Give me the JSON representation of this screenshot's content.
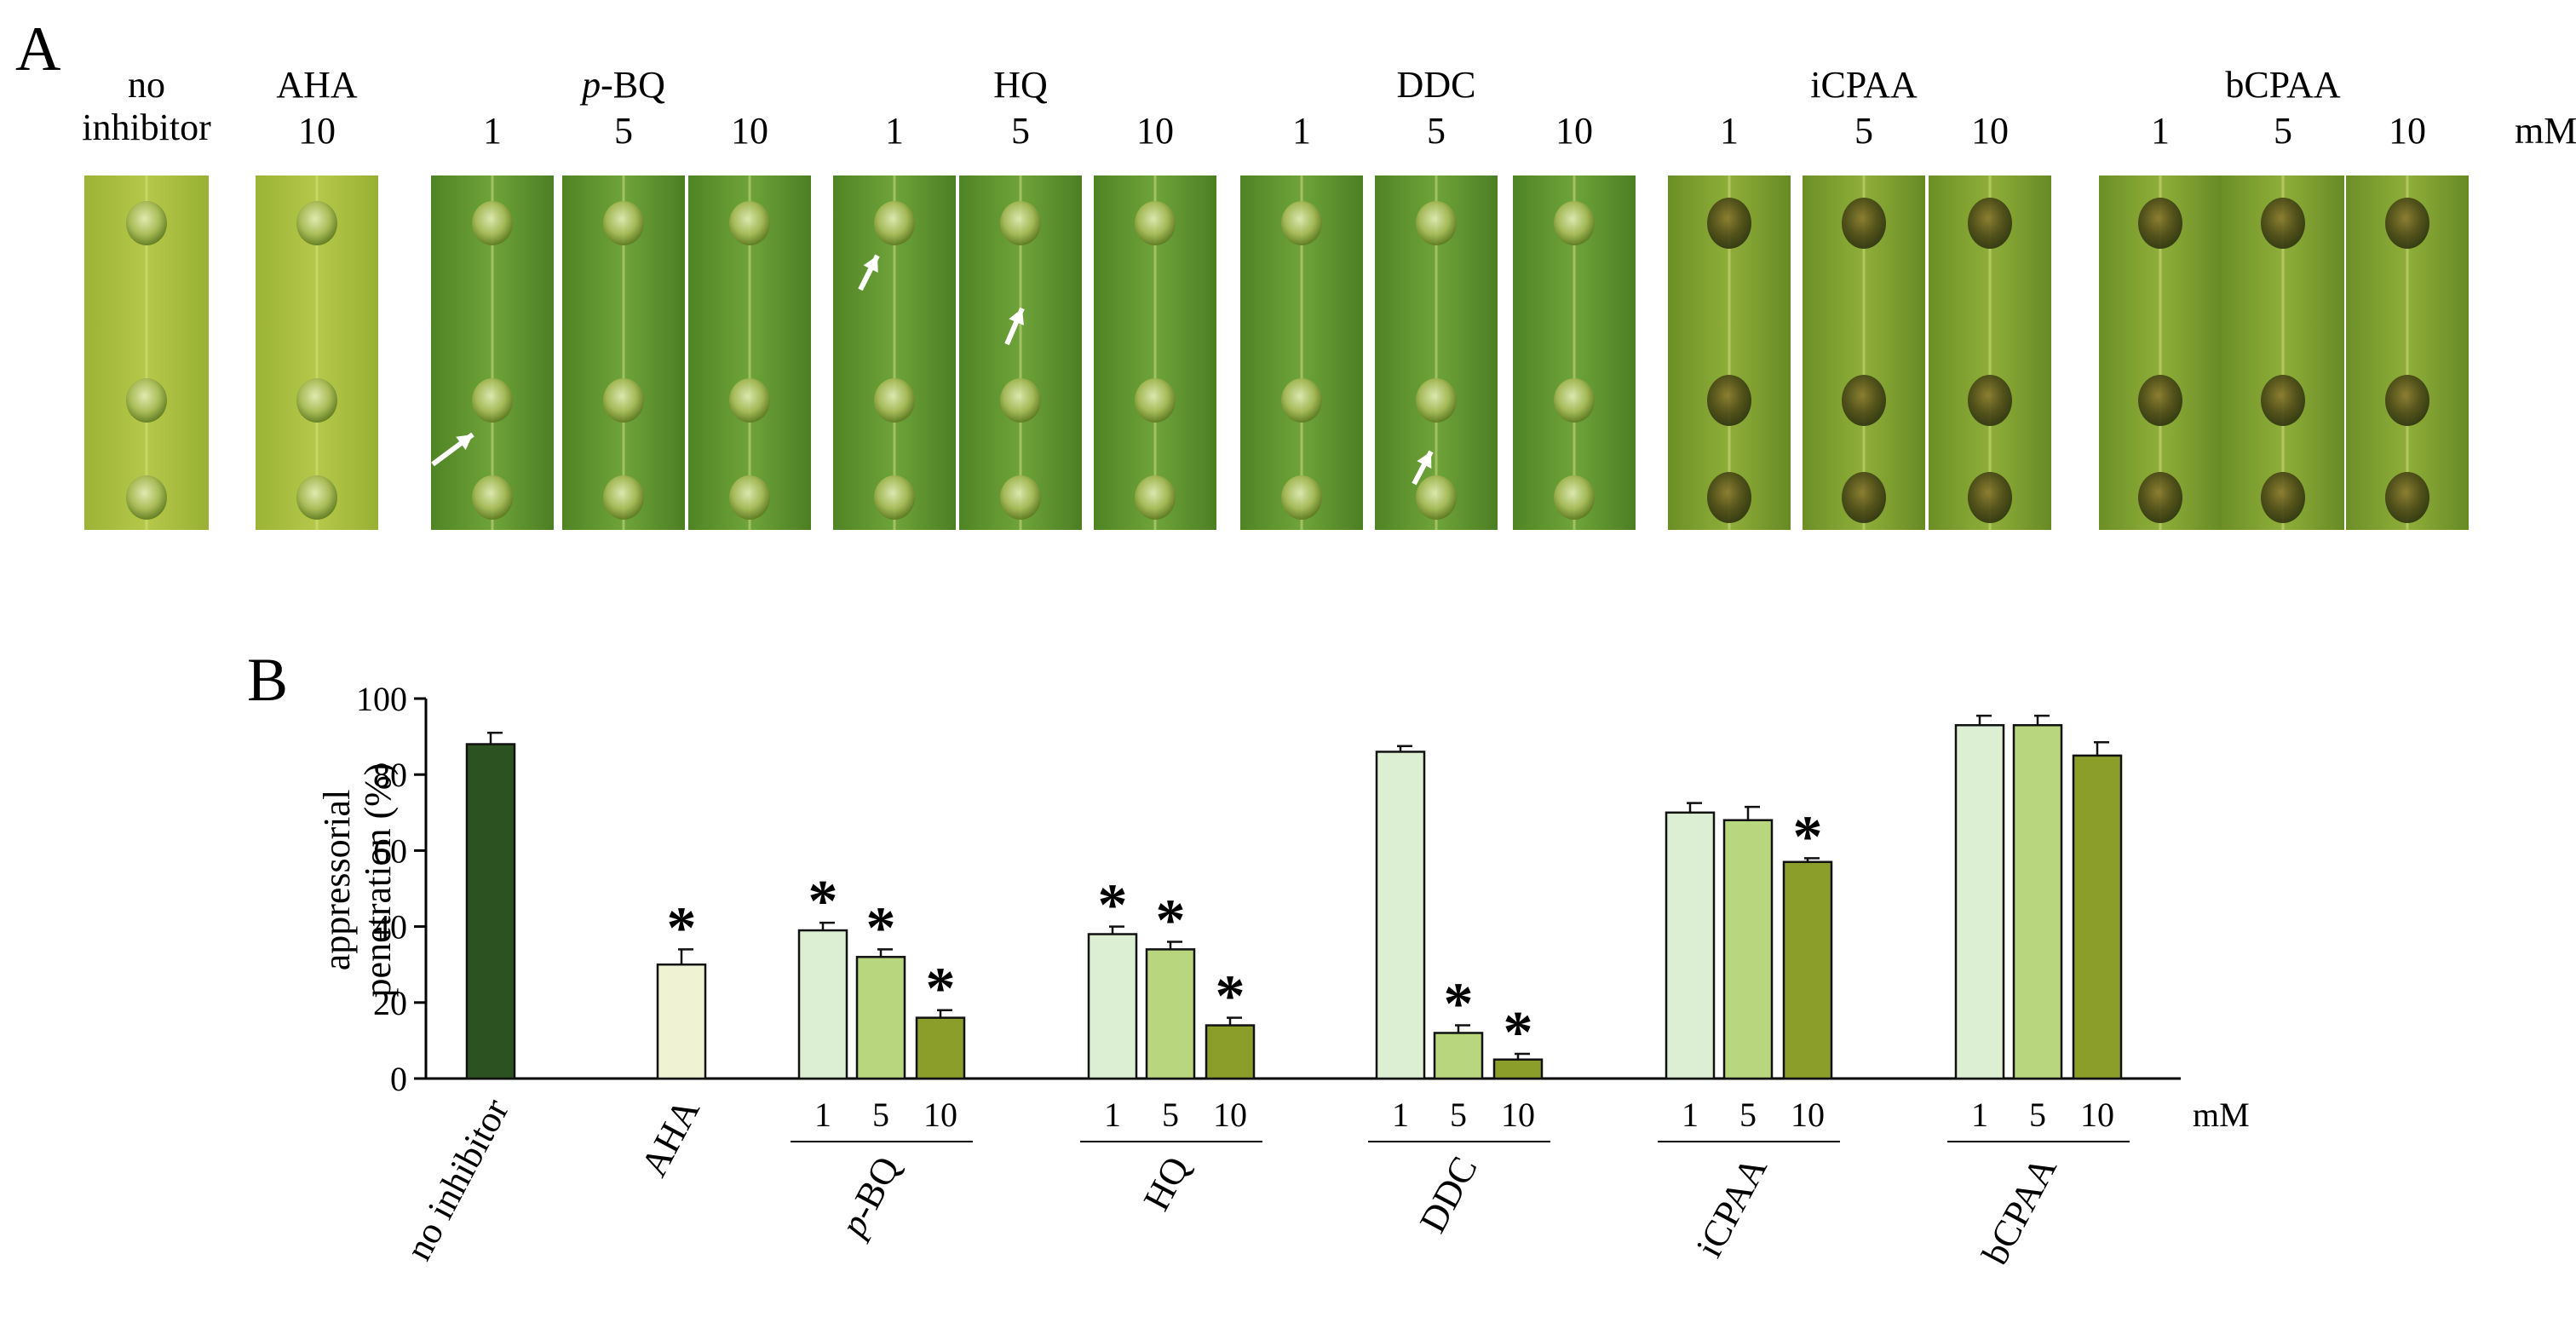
{
  "panel_a": {
    "label": "A",
    "unit": "mM",
    "groups": [
      {
        "name": "no inhibitor",
        "line1": "no",
        "line2": "inhibitor",
        "concentrations": [
          ""
        ]
      },
      {
        "name": "AHA",
        "concentrations": [
          "10"
        ]
      },
      {
        "name": "p-BQ",
        "italic_prefix": "p",
        "rest": "-BQ",
        "concentrations": [
          "1",
          "5",
          "10"
        ]
      },
      {
        "name": "HQ",
        "concentrations": [
          "1",
          "5",
          "10"
        ]
      },
      {
        "name": "DDC",
        "concentrations": [
          "1",
          "5",
          "10"
        ]
      },
      {
        "name": "iCPAA",
        "concentrations": [
          "1",
          "5",
          "10"
        ]
      },
      {
        "name": "bCPAA",
        "concentrations": [
          "1",
          "5",
          "10"
        ]
      }
    ],
    "photo_colors": {
      "dark_leaf": "#5e8f2c",
      "light_leaf": "#a9be3c",
      "droplet": "#c8d890"
    }
  },
  "chart_data": {
    "type": "bar",
    "panel_label": "B",
    "ylabel_line1": "appressorial",
    "ylabel_line2": "penetration (%)",
    "ylim": [
      0,
      100
    ],
    "yticks": [
      "0",
      "20",
      "40",
      "60",
      "80",
      "100"
    ],
    "unit": "mM",
    "concentration_colors": {
      "1": "#dcefd2",
      "5": "#b7d67e",
      "10": "#8c9e2a"
    },
    "control_colors": {
      "no inhibitor": "#2d5222",
      "AHA": "#eff3d3"
    },
    "groups": [
      {
        "name": "no inhibitor",
        "bars": [
          {
            "conc": "",
            "value": 88,
            "error": 3,
            "sig": false,
            "color": "#2d5222"
          }
        ]
      },
      {
        "name": "AHA",
        "bars": [
          {
            "conc": "",
            "value": 30,
            "error": 4,
            "sig": true,
            "color": "#eff3d3"
          }
        ]
      },
      {
        "name": "p-BQ",
        "italic_prefix": "p",
        "rest": "-BQ",
        "bars": [
          {
            "conc": "1",
            "value": 39,
            "error": 2,
            "sig": true
          },
          {
            "conc": "5",
            "value": 32,
            "error": 2,
            "sig": true
          },
          {
            "conc": "10",
            "value": 16,
            "error": 2,
            "sig": true
          }
        ]
      },
      {
        "name": "HQ",
        "bars": [
          {
            "conc": "1",
            "value": 38,
            "error": 2,
            "sig": true
          },
          {
            "conc": "5",
            "value": 34,
            "error": 2,
            "sig": true
          },
          {
            "conc": "10",
            "value": 14,
            "error": 2,
            "sig": true
          }
        ]
      },
      {
        "name": "DDC",
        "bars": [
          {
            "conc": "1",
            "value": 86,
            "error": 1.5,
            "sig": false
          },
          {
            "conc": "5",
            "value": 12,
            "error": 2,
            "sig": true
          },
          {
            "conc": "10",
            "value": 5,
            "error": 1.5,
            "sig": true
          }
        ]
      },
      {
        "name": "iCPAA",
        "bars": [
          {
            "conc": "1",
            "value": 70,
            "error": 2.5,
            "sig": false
          },
          {
            "conc": "5",
            "value": 68,
            "error": 3.5,
            "sig": false
          },
          {
            "conc": "10",
            "value": 57,
            "error": 1,
            "sig": true
          }
        ]
      },
      {
        "name": "bCPAA",
        "bars": [
          {
            "conc": "1",
            "value": 93,
            "error": 2.5,
            "sig": false
          },
          {
            "conc": "5",
            "value": 93,
            "error": 2.5,
            "sig": false
          },
          {
            "conc": "10",
            "value": 85,
            "error": 3.5,
            "sig": false
          }
        ]
      }
    ]
  }
}
